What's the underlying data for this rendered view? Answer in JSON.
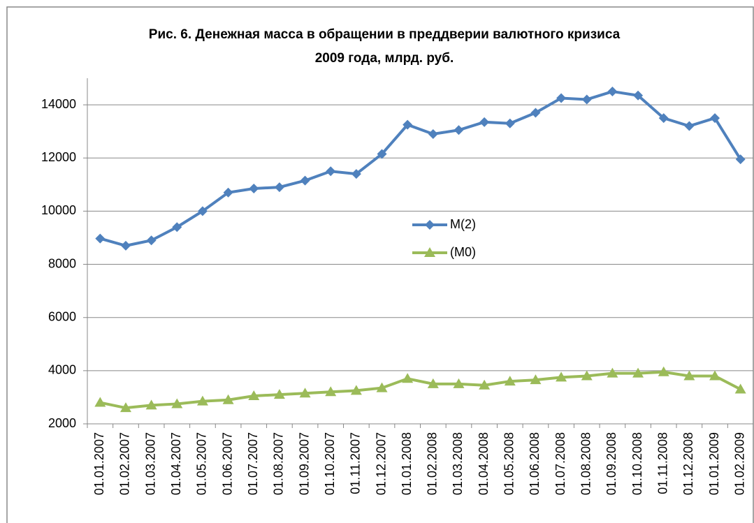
{
  "chart_data": {
    "type": "line",
    "title": [
      "Рис. 6. Денежная масса в обращении в преддверии валютного  кризиса",
      "2009 года, млрд. руб."
    ],
    "categories": [
      "01.01.2007",
      "01.02.2007",
      "01.03.2007",
      "01.04.2007",
      "01.05.2007",
      "01.06.2007",
      "01.07.2007",
      "01.08.2007",
      "01.09.2007",
      "01.10.2007",
      "01.11.2007",
      "01.12.2007",
      "01.01.2008",
      "01.02.2008",
      "01.03.2008",
      "01.04.2008",
      "01.05.2008",
      "01.06.2008",
      "01.07.2008",
      "01.08.2008",
      "01.09.2008",
      "01.10.2008",
      "01.11.2008",
      "01.12.2008",
      "01.01.2009",
      "01.02.2009"
    ],
    "series": [
      {
        "name": "M(2)",
        "color": "#4f81bd",
        "marker": "diamond",
        "values": [
          8970,
          8700,
          8900,
          9400,
          10000,
          10700,
          10850,
          10900,
          11150,
          11500,
          11400,
          12150,
          13250,
          12900,
          13050,
          13350,
          13300,
          13700,
          14250,
          14200,
          14500,
          14350,
          13500,
          13200,
          13500,
          11950
        ]
      },
      {
        "name": "(M0)",
        "color": "#9bbb59",
        "marker": "triangle",
        "values": [
          2800,
          2600,
          2700,
          2750,
          2850,
          2900,
          3050,
          3100,
          3150,
          3200,
          3250,
          3350,
          3700,
          3500,
          3500,
          3450,
          3600,
          3650,
          3750,
          3800,
          3900,
          3900,
          3950,
          3800,
          3800,
          3300
        ]
      }
    ],
    "ylim": [
      2000,
      15000
    ],
    "yticks": [
      2000,
      4000,
      6000,
      8000,
      10000,
      12000,
      14000
    ],
    "grid": true
  }
}
